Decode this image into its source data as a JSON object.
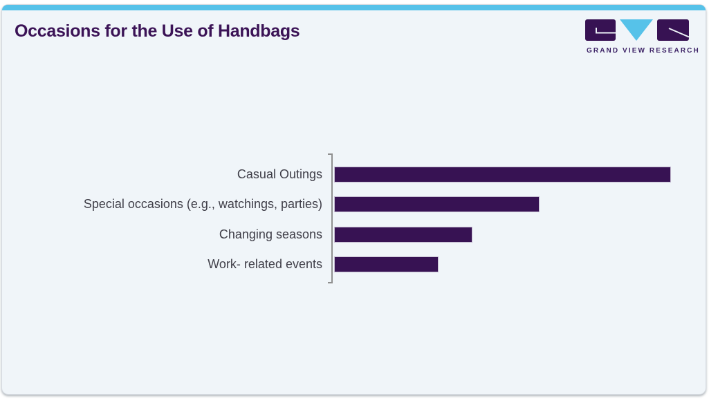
{
  "header": {
    "title": "Occasions for the Use of Handbags"
  },
  "logo": {
    "brand_text": "GRAND VIEW RESEARCH",
    "icons": [
      "gvr-g-block-icon",
      "gvr-v-triangle-icon",
      "gvr-r-block-icon"
    ]
  },
  "colors": {
    "accent_cyan": "#56c2e9",
    "bar_purple": "#371253",
    "title_purple": "#3b1356",
    "label_gray": "#3f3e48",
    "card_background": "#f0f5f9",
    "axis_gray": "#8f8f8f"
  },
  "chart_data": {
    "type": "bar",
    "orientation": "horizontal",
    "title": "Occasions for the Use of Handbags",
    "categories": [
      "Casual Outings",
      "Special occasions (e.g., watchings, parties)",
      "Changing seasons",
      "Work- related events"
    ],
    "values": [
      100,
      61,
      41,
      31
    ],
    "values_note": "no numeric axis or data labels shown; values estimated from bar lengths relative to longest bar = 100",
    "xlabel": "",
    "ylabel": "",
    "xlim": [
      0,
      105
    ],
    "grid": false,
    "legend": "none",
    "bar_color": "#371253"
  }
}
